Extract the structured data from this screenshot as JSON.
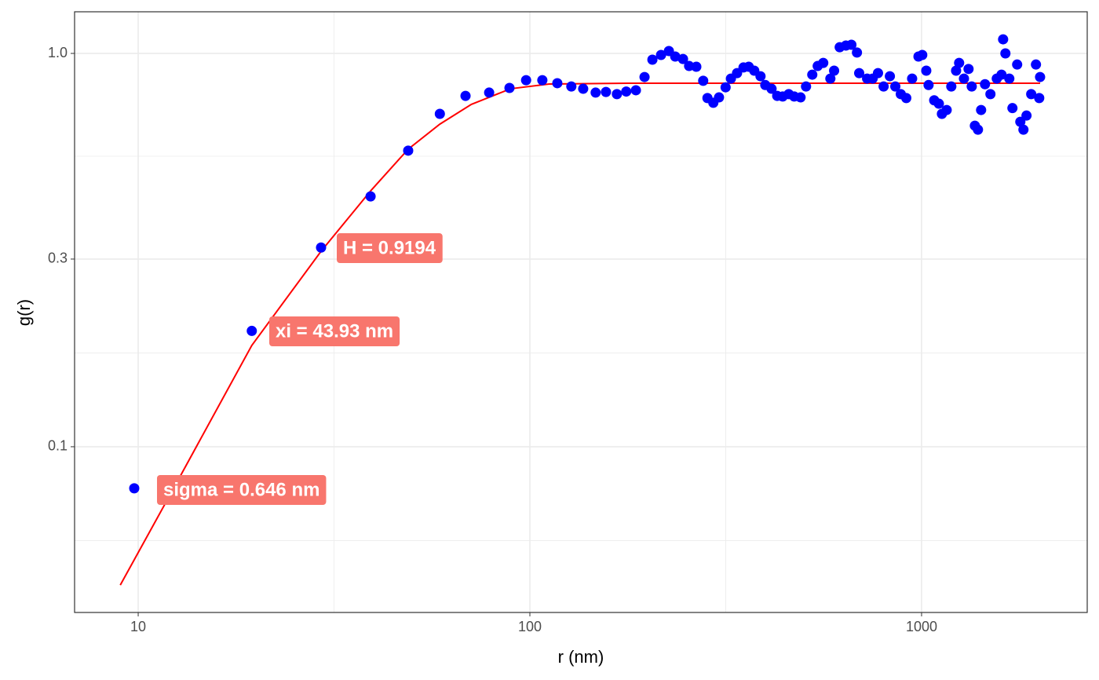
{
  "chart_data": {
    "type": "scatter",
    "xlabel": "r (nm)",
    "ylabel": "g(r)",
    "log_x": true,
    "log_y": true,
    "grid": true,
    "xlim": [
      6.88,
      2648
    ],
    "ylim": [
      0.0379,
      1.276
    ],
    "xticks": [
      10,
      100,
      1000
    ],
    "yticks": [
      0.1,
      0.3,
      {
        "value": 1,
        "label": "1.0"
      }
    ],
    "series": [
      {
        "type": "scatter",
        "color": "#0000ff",
        "x": [
          9.77,
          19.5,
          29.3,
          39.2,
          48.9,
          58.9,
          68.5,
          78.7,
          88.7,
          97.8,
          107.6,
          117.5,
          127.6,
          136.8,
          147.2,
          156.4,
          166.8,
          176.2,
          186.5,
          196.2,
          205.5,
          216.2,
          226.4,
          235,
          246,
          255,
          266,
          277,
          284,
          294,
          304,
          316,
          326,
          338,
          351,
          362,
          374,
          388,
          399,
          414,
          428,
          442,
          458,
          473,
          491,
          507,
          526,
          543,
          561,
          585,
          598,
          618,
          641,
          662,
          684,
          693,
          726,
          750,
          774,
          800,
          830,
          857,
          885,
          914,
          946,
          982,
          1004,
          1028,
          1042,
          1077,
          1107,
          1127,
          1159,
          1191,
          1225,
          1247,
          1283,
          1318,
          1343,
          1368,
          1393,
          1419,
          1452,
          1499,
          1556,
          1600,
          1615,
          1637,
          1675,
          1706,
          1754,
          1787,
          1820,
          1853,
          1905,
          1959,
          1997,
          2007
        ],
        "values": [
          0.0784,
          0.197,
          0.321,
          0.433,
          0.566,
          0.702,
          0.78,
          0.795,
          0.817,
          0.855,
          0.855,
          0.84,
          0.824,
          0.813,
          0.795,
          0.798,
          0.788,
          0.8,
          0.806,
          0.871,
          0.964,
          0.991,
          1.014,
          0.982,
          0.968,
          0.929,
          0.925,
          0.852,
          0.77,
          0.749,
          0.773,
          0.82,
          0.863,
          0.891,
          0.921,
          0.925,
          0.904,
          0.875,
          0.831,
          0.813,
          0.78,
          0.777,
          0.788,
          0.777,
          0.773,
          0.824,
          0.883,
          0.929,
          0.946,
          0.863,
          0.904,
          1.037,
          1.047,
          1.052,
          1.005,
          0.891,
          0.863,
          0.863,
          0.891,
          0.824,
          0.875,
          0.824,
          0.788,
          0.77,
          0.863,
          0.982,
          0.991,
          0.904,
          0.831,
          0.76,
          0.745,
          0.702,
          0.718,
          0.824,
          0.904,
          0.946,
          0.863,
          0.913,
          0.824,
          0.655,
          0.64,
          0.718,
          0.835,
          0.788,
          0.863,
          0.883,
          1.086,
          1,
          0.863,
          0.726,
          0.937,
          0.67,
          0.64,
          0.695,
          0.788,
          0.937,
          0.77,
          0.871
        ]
      },
      {
        "type": "line",
        "color": "#ff0000",
        "x": [
          9.0,
          12.0,
          19.5,
          29.3,
          39.2,
          48.9,
          58.9,
          70.9,
          89.2,
          112,
          178,
          2007
        ],
        "values": [
          0.0445,
          0.0748,
          0.181,
          0.314,
          0.447,
          0.571,
          0.661,
          0.742,
          0.813,
          0.836,
          0.84,
          0.84
        ]
      }
    ],
    "annotations": [
      {
        "text": "H = 0.9194",
        "color": "#f8766d"
      },
      {
        "text": "xi = 43.93 nm",
        "color": "#f8766d"
      },
      {
        "text": "sigma = 0.646 nm",
        "color": "#f8766d"
      }
    ]
  }
}
